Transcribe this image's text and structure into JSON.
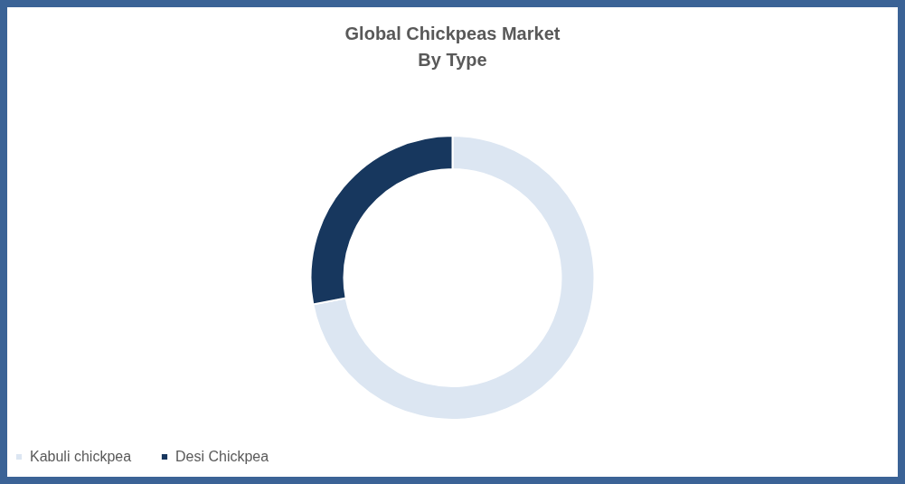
{
  "chart_data": {
    "type": "donut",
    "title": "Global Chickpeas Market\nBy Type",
    "categories": [
      "Kabuli chickpea",
      "Desi Chickpea"
    ],
    "values": [
      72,
      28
    ],
    "colors": [
      "#dce6f2",
      "#17375e"
    ],
    "legend": "bottom"
  }
}
